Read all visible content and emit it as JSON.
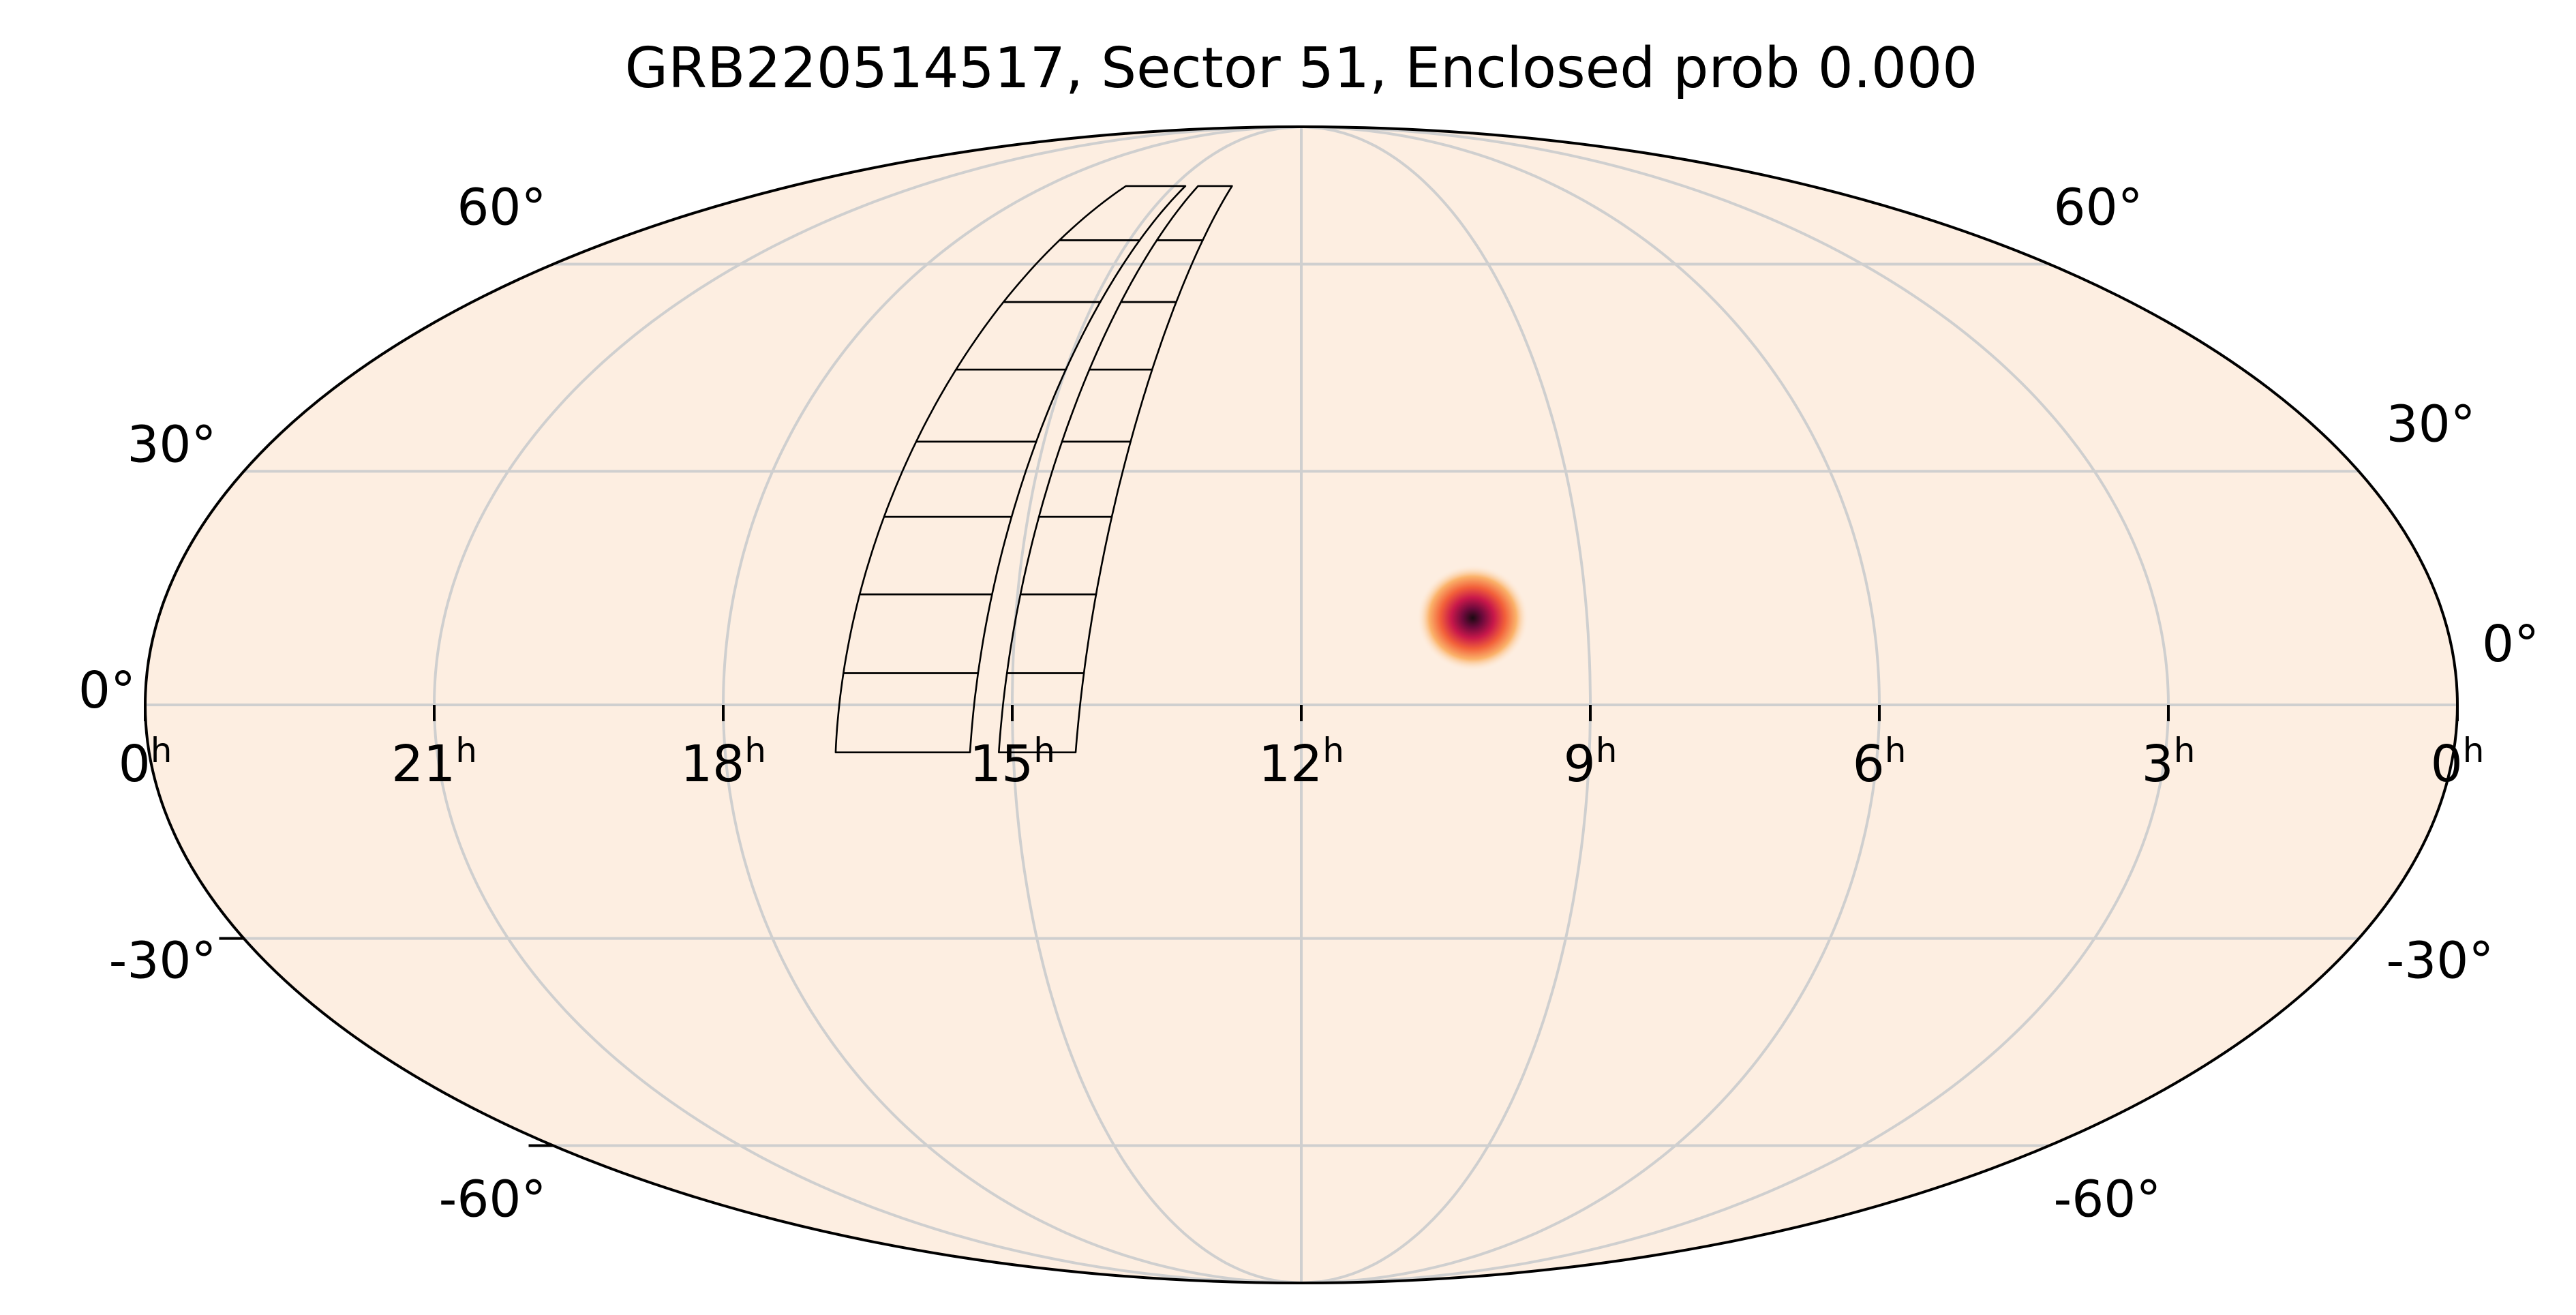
{
  "chart_data": {
    "type": "heatmap",
    "projection": "mollweide",
    "title": "GRB220514517, Sector 51, Enclosed prob 0.000",
    "ra_tick_labels": [
      {
        "label": "0",
        "sup": "h",
        "ra_hours": 24
      },
      {
        "label": "21",
        "sup": "h",
        "ra_hours": 21
      },
      {
        "label": "18",
        "sup": "h",
        "ra_hours": 18
      },
      {
        "label": "15",
        "sup": "h",
        "ra_hours": 15
      },
      {
        "label": "12",
        "sup": "h",
        "ra_hours": 12
      },
      {
        "label": "9",
        "sup": "h",
        "ra_hours": 9
      },
      {
        "label": "6",
        "sup": "h",
        "ra_hours": 6
      },
      {
        "label": "3",
        "sup": "h",
        "ra_hours": 3
      },
      {
        "label": "0",
        "sup": "h",
        "ra_hours": 0
      }
    ],
    "dec_tick_labels_left": [
      {
        "label": "60°",
        "dec": 60
      },
      {
        "label": "30°",
        "dec": 30
      },
      {
        "label": "0°",
        "dec": 0
      },
      {
        "label": "-30°",
        "dec": -30
      },
      {
        "label": "-60°",
        "dec": -60
      }
    ],
    "dec_tick_labels_right": [
      {
        "label": "60°",
        "dec": 60
      },
      {
        "label": "30°",
        "dec": 30
      },
      {
        "label": "0°",
        "dec": 0
      },
      {
        "label": "-30°",
        "dec": -30
      },
      {
        "label": "-60°",
        "dec": -60
      }
    ],
    "ra_range_hours": [
      24,
      0
    ],
    "dec_range_deg": [
      -90,
      90
    ],
    "grid": true,
    "background_color": "#fdeee1",
    "grid_color": "#cfcfcf",
    "hotspot": {
      "ra_hours": 10.2,
      "dec_deg": 11,
      "colormap": "inferno_r"
    },
    "footprint": {
      "columns": [
        {
          "ra_start_hours": 16.85,
          "ra_end_hours": 15.45,
          "ra_drift_per_deg": -0.009
        },
        {
          "ra_start_hours": 15.15,
          "ra_end_hours": 14.35,
          "ra_drift_per_deg": -0.009
        }
      ],
      "dec_edges_deg": [
        -6,
        4,
        14,
        24,
        34,
        44,
        54,
        64,
        74
      ]
    }
  }
}
